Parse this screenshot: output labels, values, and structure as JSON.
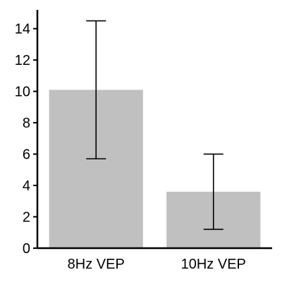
{
  "chart_data": {
    "type": "bar",
    "categories": [
      "8Hz VEP",
      "10Hz VEP"
    ],
    "values": [
      10.1,
      3.6
    ],
    "error_bars": [
      {
        "lower": 5.7,
        "upper": 14.5
      },
      {
        "lower": 1.2,
        "upper": 6.0
      }
    ],
    "ylim": [
      0,
      15.2
    ],
    "yticks": [
      0,
      2,
      4,
      6,
      8,
      10,
      12,
      14
    ],
    "ytick_labels": [
      "0",
      "2",
      "4",
      "6",
      "8",
      "10",
      "12",
      "14"
    ],
    "grid": false,
    "colors": {
      "bar": "#c0c0c0",
      "axis": "#000000",
      "error": "#000000"
    }
  }
}
